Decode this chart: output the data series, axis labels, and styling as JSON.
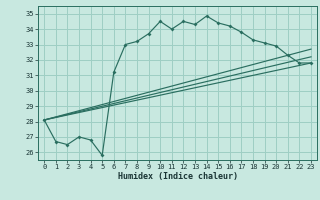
{
  "bg_color": "#c8e8e0",
  "grid_color": "#9ecec4",
  "line_color": "#2a6e60",
  "xlabel": "Humidex (Indice chaleur)",
  "ylim": [
    25.5,
    35.5
  ],
  "xlim": [
    -0.5,
    23.5
  ],
  "yticks": [
    26,
    27,
    28,
    29,
    30,
    31,
    32,
    33,
    34,
    35
  ],
  "xticks": [
    0,
    1,
    2,
    3,
    4,
    5,
    6,
    7,
    8,
    9,
    10,
    11,
    12,
    13,
    14,
    15,
    16,
    17,
    18,
    19,
    20,
    21,
    22,
    23
  ],
  "main_x": [
    0,
    1,
    2,
    3,
    4,
    5,
    6,
    7,
    8,
    9,
    10,
    11,
    12,
    13,
    14,
    15,
    16,
    17,
    18,
    19,
    20,
    21,
    22,
    23
  ],
  "main_y": [
    28.1,
    26.7,
    26.5,
    27.0,
    26.8,
    25.8,
    31.2,
    33.0,
    33.2,
    33.7,
    34.5,
    34.0,
    34.5,
    34.3,
    34.85,
    34.4,
    34.2,
    33.8,
    33.3,
    33.1,
    32.9,
    32.3,
    31.8,
    31.8
  ],
  "straight_lines": [
    {
      "x0": 0,
      "y0": 28.1,
      "x1": 23,
      "y1": 31.8
    },
    {
      "x0": 0,
      "y0": 28.1,
      "x1": 23,
      "y1": 32.2
    },
    {
      "x0": 0,
      "y0": 28.1,
      "x1": 23,
      "y1": 32.7
    }
  ]
}
